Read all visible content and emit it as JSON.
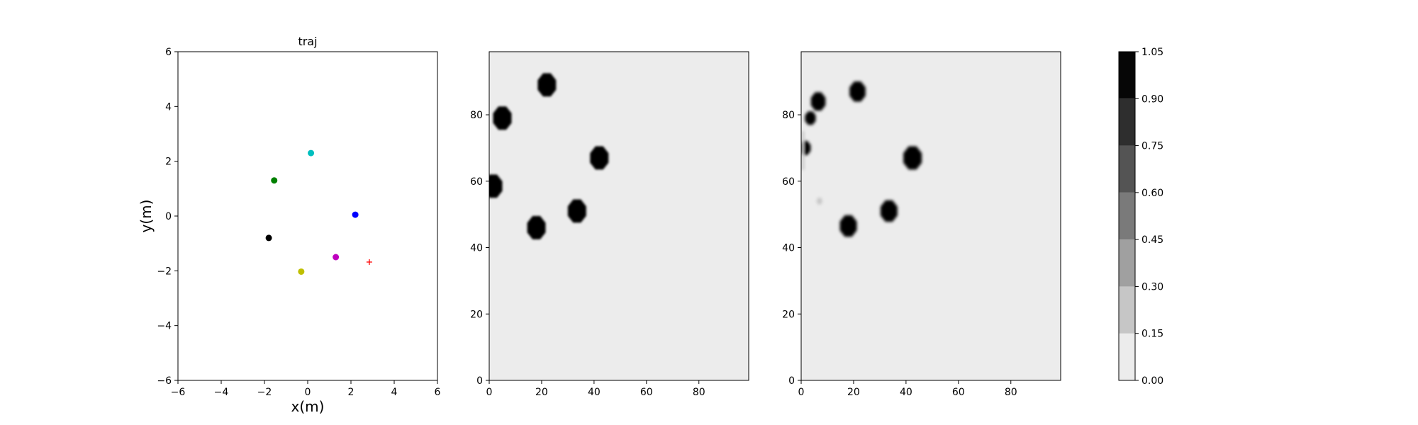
{
  "chart_data": [
    {
      "type": "scatter",
      "title": "traj",
      "xlabel": "x(m)",
      "ylabel": "y(m)",
      "xlim": [
        -6,
        6
      ],
      "ylim": [
        -6,
        6
      ],
      "xticks": [
        -6,
        -4,
        -2,
        0,
        2,
        4,
        6
      ],
      "yticks": [
        -6,
        -4,
        -2,
        0,
        2,
        4,
        6
      ],
      "grid": false,
      "points": [
        {
          "x": 0.15,
          "y": 2.3,
          "color": "#00bfbf",
          "marker": "circle"
        },
        {
          "x": -1.55,
          "y": 1.3,
          "color": "#008000",
          "marker": "circle"
        },
        {
          "x": 2.2,
          "y": 0.05,
          "color": "#0000ff",
          "marker": "circle"
        },
        {
          "x": -1.8,
          "y": -0.8,
          "color": "#000000",
          "marker": "circle"
        },
        {
          "x": 1.3,
          "y": -1.5,
          "color": "#bf00bf",
          "marker": "circle"
        },
        {
          "x": -0.3,
          "y": -2.03,
          "color": "#bfbf00",
          "marker": "circle"
        },
        {
          "x": 2.85,
          "y": -1.68,
          "color": "#ff0000",
          "marker": "plus"
        }
      ]
    },
    {
      "type": "heatmap",
      "title": "",
      "xlabel": "",
      "ylabel": "",
      "xlim": [
        0,
        99
      ],
      "ylim": [
        0,
        99
      ],
      "xticks": [
        0,
        20,
        40,
        60,
        80
      ],
      "yticks": [
        0,
        20,
        40,
        60,
        80
      ],
      "background_value": 0.05,
      "blobs": [
        {
          "cx": 22,
          "cy": 89,
          "r": 3.8,
          "value": 1.0
        },
        {
          "cx": 5,
          "cy": 79,
          "r": 3.8,
          "value": 1.0
        },
        {
          "cx": 42,
          "cy": 67,
          "r": 3.8,
          "value": 1.0
        },
        {
          "cx": 1.5,
          "cy": 58.5,
          "r": 3.8,
          "value": 1.0
        },
        {
          "cx": 33.5,
          "cy": 51,
          "r": 3.8,
          "value": 1.0
        },
        {
          "cx": 18,
          "cy": 46,
          "r": 3.8,
          "value": 1.0
        }
      ]
    },
    {
      "type": "heatmap",
      "title": "",
      "xlabel": "",
      "ylabel": "",
      "xlim": [
        0,
        99
      ],
      "ylim": [
        0,
        99
      ],
      "xticks": [
        0,
        20,
        40,
        60,
        80
      ],
      "yticks": [
        0,
        20,
        40,
        60,
        80
      ],
      "background_value": 0.05,
      "blobs": [
        {
          "cx": 21.5,
          "cy": 87,
          "r": 3.3,
          "value": 1.0
        },
        {
          "cx": 6.5,
          "cy": 84,
          "r": 3.0,
          "value": 1.0
        },
        {
          "cx": 3.5,
          "cy": 79,
          "r": 2.2,
          "value": 1.0
        },
        {
          "cx": 42.5,
          "cy": 67,
          "r": 3.8,
          "value": 1.0
        },
        {
          "cx": 1.5,
          "cy": 70,
          "r": 2.3,
          "value": 1.0
        },
        {
          "cx": 33.5,
          "cy": 51,
          "r": 3.5,
          "value": 1.0
        },
        {
          "cx": 18,
          "cy": 46.5,
          "r": 3.5,
          "value": 1.0
        },
        {
          "cx": 7,
          "cy": 54,
          "r": 1.1,
          "value": 0.25
        }
      ]
    }
  ],
  "colorbar": {
    "levels": [
      0.0,
      0.15,
      0.3,
      0.45,
      0.6,
      0.75,
      0.9,
      1.05
    ],
    "tick_labels": [
      "0.00",
      "0.15",
      "0.30",
      "0.45",
      "0.60",
      "0.75",
      "0.90",
      "1.05"
    ],
    "colors": [
      "#ececec",
      "#c6c6c6",
      "#a0a0a0",
      "#7a7a7a",
      "#545454",
      "#2e2e2e",
      "#060606"
    ]
  }
}
